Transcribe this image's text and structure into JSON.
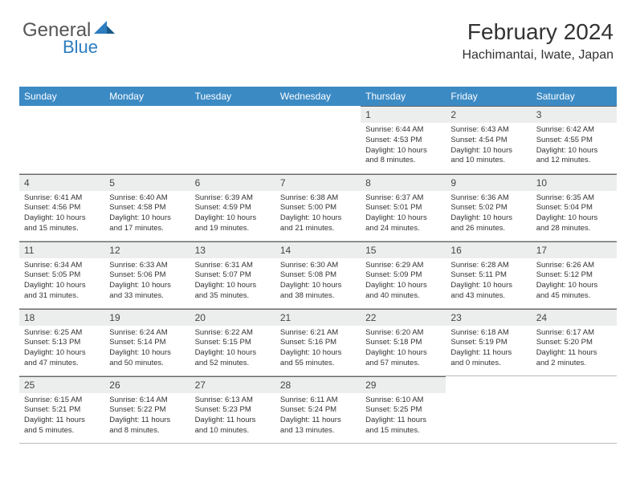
{
  "logo": {
    "text1": "General",
    "text2": "Blue"
  },
  "header": {
    "title": "February 2024",
    "location": "Hachimantai, Iwate, Japan"
  },
  "colors": {
    "header_bg": "#3b8ac4",
    "header_fg": "#ffffff",
    "daynum_bg": "#eceeee",
    "border": "#666666",
    "text": "#333333",
    "logo_gray": "#555555",
    "logo_blue": "#2d7dc0"
  },
  "day_labels": [
    "Sunday",
    "Monday",
    "Tuesday",
    "Wednesday",
    "Thursday",
    "Friday",
    "Saturday"
  ],
  "weeks": [
    [
      null,
      null,
      null,
      null,
      {
        "num": "1",
        "sunrise": "6:44 AM",
        "sunset": "4:53 PM",
        "daylight": "10 hours and 8 minutes."
      },
      {
        "num": "2",
        "sunrise": "6:43 AM",
        "sunset": "4:54 PM",
        "daylight": "10 hours and 10 minutes."
      },
      {
        "num": "3",
        "sunrise": "6:42 AM",
        "sunset": "4:55 PM",
        "daylight": "10 hours and 12 minutes."
      }
    ],
    [
      {
        "num": "4",
        "sunrise": "6:41 AM",
        "sunset": "4:56 PM",
        "daylight": "10 hours and 15 minutes."
      },
      {
        "num": "5",
        "sunrise": "6:40 AM",
        "sunset": "4:58 PM",
        "daylight": "10 hours and 17 minutes."
      },
      {
        "num": "6",
        "sunrise": "6:39 AM",
        "sunset": "4:59 PM",
        "daylight": "10 hours and 19 minutes."
      },
      {
        "num": "7",
        "sunrise": "6:38 AM",
        "sunset": "5:00 PM",
        "daylight": "10 hours and 21 minutes."
      },
      {
        "num": "8",
        "sunrise": "6:37 AM",
        "sunset": "5:01 PM",
        "daylight": "10 hours and 24 minutes."
      },
      {
        "num": "9",
        "sunrise": "6:36 AM",
        "sunset": "5:02 PM",
        "daylight": "10 hours and 26 minutes."
      },
      {
        "num": "10",
        "sunrise": "6:35 AM",
        "sunset": "5:04 PM",
        "daylight": "10 hours and 28 minutes."
      }
    ],
    [
      {
        "num": "11",
        "sunrise": "6:34 AM",
        "sunset": "5:05 PM",
        "daylight": "10 hours and 31 minutes."
      },
      {
        "num": "12",
        "sunrise": "6:33 AM",
        "sunset": "5:06 PM",
        "daylight": "10 hours and 33 minutes."
      },
      {
        "num": "13",
        "sunrise": "6:31 AM",
        "sunset": "5:07 PM",
        "daylight": "10 hours and 35 minutes."
      },
      {
        "num": "14",
        "sunrise": "6:30 AM",
        "sunset": "5:08 PM",
        "daylight": "10 hours and 38 minutes."
      },
      {
        "num": "15",
        "sunrise": "6:29 AM",
        "sunset": "5:09 PM",
        "daylight": "10 hours and 40 minutes."
      },
      {
        "num": "16",
        "sunrise": "6:28 AM",
        "sunset": "5:11 PM",
        "daylight": "10 hours and 43 minutes."
      },
      {
        "num": "17",
        "sunrise": "6:26 AM",
        "sunset": "5:12 PM",
        "daylight": "10 hours and 45 minutes."
      }
    ],
    [
      {
        "num": "18",
        "sunrise": "6:25 AM",
        "sunset": "5:13 PM",
        "daylight": "10 hours and 47 minutes."
      },
      {
        "num": "19",
        "sunrise": "6:24 AM",
        "sunset": "5:14 PM",
        "daylight": "10 hours and 50 minutes."
      },
      {
        "num": "20",
        "sunrise": "6:22 AM",
        "sunset": "5:15 PM",
        "daylight": "10 hours and 52 minutes."
      },
      {
        "num": "21",
        "sunrise": "6:21 AM",
        "sunset": "5:16 PM",
        "daylight": "10 hours and 55 minutes."
      },
      {
        "num": "22",
        "sunrise": "6:20 AM",
        "sunset": "5:18 PM",
        "daylight": "10 hours and 57 minutes."
      },
      {
        "num": "23",
        "sunrise": "6:18 AM",
        "sunset": "5:19 PM",
        "daylight": "11 hours and 0 minutes."
      },
      {
        "num": "24",
        "sunrise": "6:17 AM",
        "sunset": "5:20 PM",
        "daylight": "11 hours and 2 minutes."
      }
    ],
    [
      {
        "num": "25",
        "sunrise": "6:15 AM",
        "sunset": "5:21 PM",
        "daylight": "11 hours and 5 minutes."
      },
      {
        "num": "26",
        "sunrise": "6:14 AM",
        "sunset": "5:22 PM",
        "daylight": "11 hours and 8 minutes."
      },
      {
        "num": "27",
        "sunrise": "6:13 AM",
        "sunset": "5:23 PM",
        "daylight": "11 hours and 10 minutes."
      },
      {
        "num": "28",
        "sunrise": "6:11 AM",
        "sunset": "5:24 PM",
        "daylight": "11 hours and 13 minutes."
      },
      {
        "num": "29",
        "sunrise": "6:10 AM",
        "sunset": "5:25 PM",
        "daylight": "11 hours and 15 minutes."
      },
      null,
      null
    ]
  ]
}
